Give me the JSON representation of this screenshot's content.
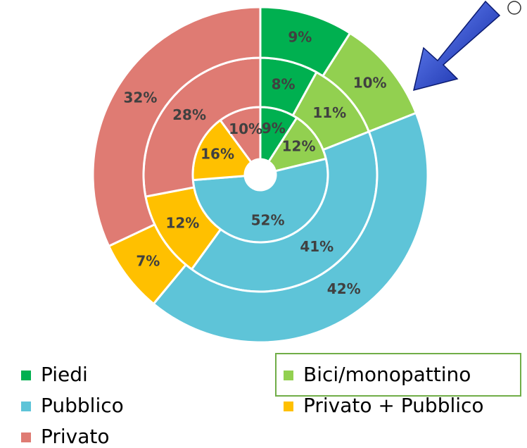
{
  "chart_data": {
    "type": "donut",
    "categories": [
      "Piedi",
      "Bici/monopattino",
      "Pubblico",
      "Privato + Pubblico",
      "Privato"
    ],
    "colors": [
      "#00b050",
      "#92d050",
      "#5ec4d8",
      "#ffc000",
      "#df7b73"
    ],
    "series": [
      {
        "values": [
          9,
          12,
          52,
          16,
          10
        ],
        "value_labels": [
          "9%",
          "12%",
          "52%",
          "16%",
          "10%"
        ]
      },
      {
        "values": [
          8,
          11,
          41,
          12,
          28
        ],
        "value_labels": [
          "8%",
          "11%",
          "41%",
          "12%",
          "28%"
        ]
      },
      {
        "values": [
          9,
          10,
          42,
          7,
          32
        ],
        "value_labels": [
          "9%",
          "10%",
          "42%",
          "7%",
          "32%"
        ]
      }
    ]
  }
}
